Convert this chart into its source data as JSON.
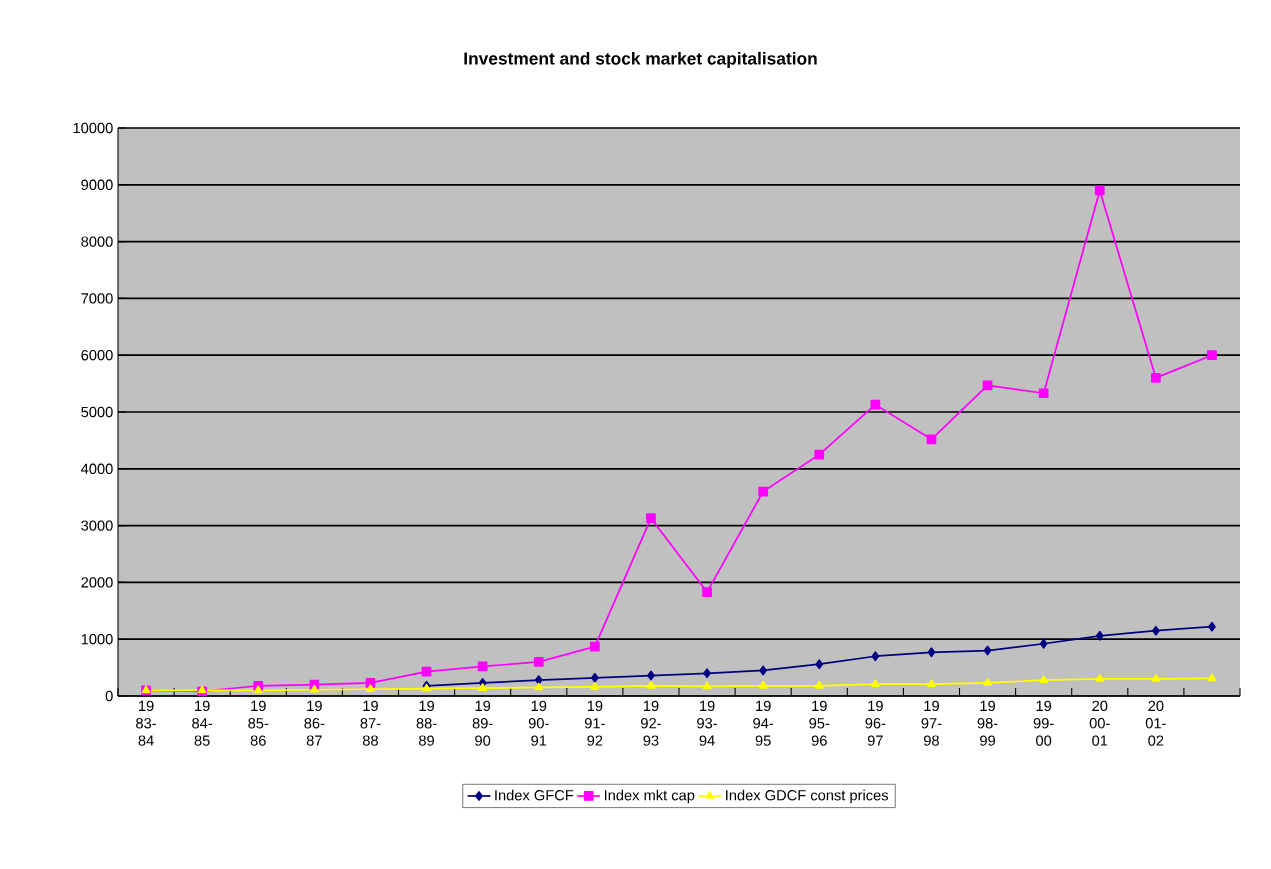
{
  "chart_data": {
    "type": "line",
    "title": "Investment and stock market capitalisation",
    "categories": [
      "19 83-84",
      "19 84-85",
      "19 85-86",
      "19 86-87",
      "19 87-88",
      "19 88-89",
      "19 89-90",
      "19 90-91",
      "19 91-92",
      "19 92-93",
      "19 93-94",
      "19 94-95",
      "19 95-96",
      "19 96-97",
      "19 97-98",
      "19 98-99",
      "19 99-00",
      "20 00-01",
      "20 01-02",
      null
    ],
    "series": [
      {
        "name": "Index GFCF",
        "color": "#000080",
        "marker": "diamond",
        "values": [
          null,
          null,
          null,
          null,
          null,
          180,
          230,
          280,
          320,
          360,
          400,
          450,
          560,
          700,
          770,
          800,
          920,
          1060,
          1150,
          1220
        ]
      },
      {
        "name": "Index mkt cap",
        "color": "#ff00ff",
        "marker": "square",
        "values": [
          100,
          80,
          180,
          200,
          230,
          430,
          520,
          600,
          870,
          3130,
          1830,
          3600,
          4250,
          5130,
          4520,
          5470,
          5330,
          8900,
          5600,
          6000
        ]
      },
      {
        "name": "Index GDCF const prices",
        "color": "#ffff00",
        "marker": "triangle",
        "values": [
          100,
          100,
          100,
          110,
          120,
          130,
          140,
          150,
          160,
          180,
          170,
          180,
          180,
          210,
          210,
          230,
          280,
          300,
          300,
          310
        ]
      }
    ],
    "ylim": [
      0,
      10000
    ],
    "yticks": [
      0,
      1000,
      2000,
      3000,
      4000,
      5000,
      6000,
      7000,
      8000,
      9000,
      10000
    ],
    "grid": "y",
    "legend": "bottom",
    "line_style": "solid"
  }
}
